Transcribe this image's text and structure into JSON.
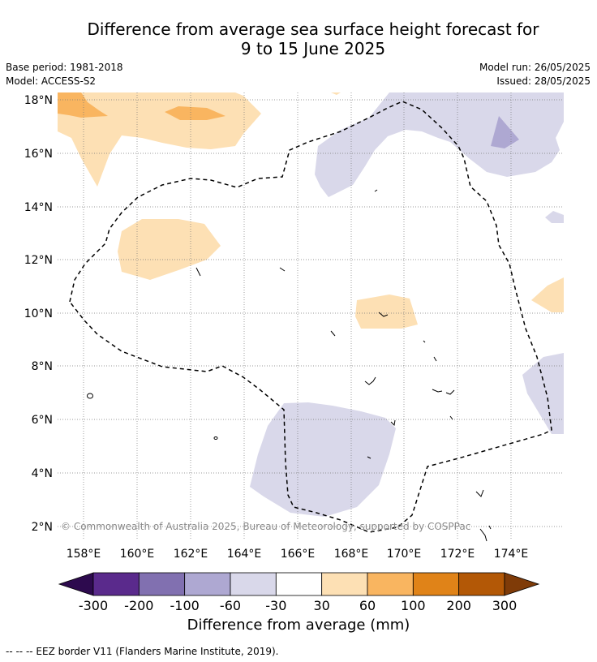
{
  "title": {
    "line1": "Difference from average sea surface height forecast for",
    "line2": "9 to 15 June 2025"
  },
  "meta": {
    "base_period": "Base period: 1981-2018",
    "model": "Model: ACCESS-S2",
    "model_run": "Model run: 26/05/2025",
    "issued": "Issued: 28/05/2025"
  },
  "map": {
    "lat_labels": [
      "18°N",
      "16°N",
      "14°N",
      "12°N",
      "10°N",
      "8°N",
      "6°N",
      "4°N",
      "2°N"
    ],
    "lon_labels": [
      "158°E",
      "160°E",
      "162°E",
      "164°E",
      "166°E",
      "168°E",
      "170°E",
      "172°E",
      "174°E"
    ],
    "copyright": "© Commonwealth of Australia 2025, Bureau of Meteorology, supported by COSPPac",
    "gridlines": true
  },
  "colorbar": {
    "ticks": [
      "-300",
      "-200",
      "-100",
      "-60",
      "-30",
      "30",
      "60",
      "100",
      "200",
      "300"
    ],
    "colors": [
      "#2d0a4e",
      "#5a2a8c",
      "#8170b0",
      "#aea8d2",
      "#d9d8ea",
      "#ffffff",
      "#fde0b4",
      "#f9b560",
      "#e08318",
      "#b35806",
      "#7f3b08"
    ],
    "label": "Difference from average (mm)"
  },
  "footer": "--  --  -- EEZ border V11 (Flanders Marine Institute, 2019)."
}
